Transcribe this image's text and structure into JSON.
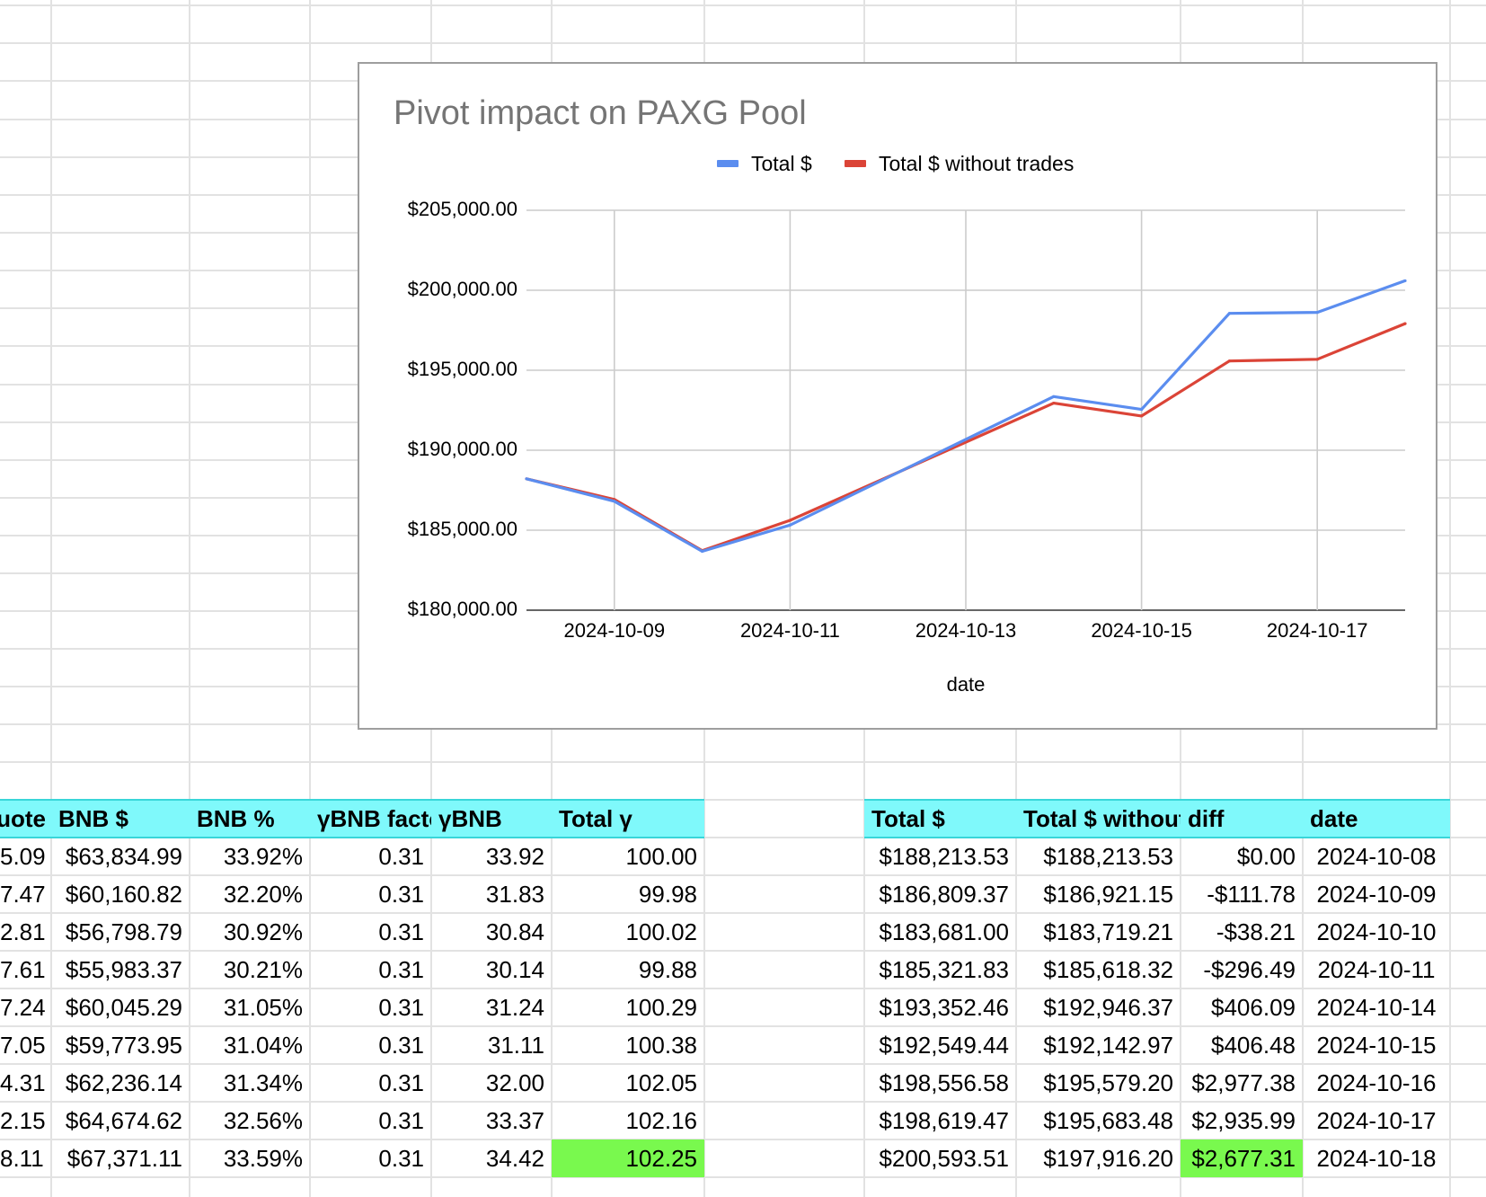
{
  "colors": {
    "header_fill": "#7ff9fb",
    "highlight_fill": "#79f94e",
    "grid_line": "#e2e2e2",
    "series_total": "#5b8def",
    "series_without": "#db4437"
  },
  "chart_data": {
    "type": "line",
    "title": "Pivot impact on PAXG Pool",
    "xlabel": "date",
    "ylabel": "",
    "legend_position": "top",
    "grid": true,
    "ylim": [
      180000,
      205000
    ],
    "y_ticks": [
      "$180,000.00",
      "$185,000.00",
      "$190,000.00",
      "$195,000.00",
      "$200,000.00",
      "$205,000.00"
    ],
    "y_tick_values": [
      180000,
      185000,
      190000,
      195000,
      200000,
      205000
    ],
    "x_ticks": [
      "2024-10-09",
      "2024-10-11",
      "2024-10-13",
      "2024-10-15",
      "2024-10-17"
    ],
    "x": [
      "2024-10-08",
      "2024-10-09",
      "2024-10-10",
      "2024-10-11",
      "2024-10-14",
      "2024-10-15",
      "2024-10-16",
      "2024-10-17",
      "2024-10-18"
    ],
    "xlim": [
      "2024-10-08",
      "2024-10-18"
    ],
    "series": [
      {
        "name": "Total $",
        "color": "#5b8def",
        "values": [
          188213.53,
          186809.37,
          183681.0,
          185321.83,
          193352.46,
          192549.44,
          198556.58,
          198619.47,
          200593.51
        ]
      },
      {
        "name": "Total $ without trades",
        "color": "#db4437",
        "values": [
          188213.53,
          186921.15,
          183719.21,
          185618.32,
          192946.37,
          192142.97,
          195579.2,
          195683.48,
          197916.2
        ]
      }
    ]
  },
  "left_table": {
    "headers": [
      "quote $",
      "BNB $",
      "BNB %",
      "γBNB factor",
      "γBNB",
      "Total γ"
    ],
    "rows": [
      [
        "5.09",
        "$63,834.99",
        "33.92%",
        "0.31",
        "33.92",
        "100.00"
      ],
      [
        "7.47",
        "$60,160.82",
        "32.20%",
        "0.31",
        "31.83",
        "99.98"
      ],
      [
        "2.81",
        "$56,798.79",
        "30.92%",
        "0.31",
        "30.84",
        "100.02"
      ],
      [
        "7.61",
        "$55,983.37",
        "30.21%",
        "0.31",
        "30.14",
        "99.88"
      ],
      [
        "7.24",
        "$60,045.29",
        "31.05%",
        "0.31",
        "31.24",
        "100.29"
      ],
      [
        "7.05",
        "$59,773.95",
        "31.04%",
        "0.31",
        "31.11",
        "100.38"
      ],
      [
        "4.31",
        "$62,236.14",
        "31.34%",
        "0.31",
        "32.00",
        "102.05"
      ],
      [
        "2.15",
        "$64,674.62",
        "32.56%",
        "0.31",
        "33.37",
        "102.16"
      ],
      [
        "8.11",
        "$67,371.11",
        "33.59%",
        "0.31",
        "34.42",
        "102.25"
      ]
    ]
  },
  "right_table": {
    "headers": [
      "Total $",
      "Total $ without trades",
      "diff",
      "date"
    ],
    "rows": [
      [
        "$188,213.53",
        "$188,213.53",
        "$0.00",
        "2024-10-08"
      ],
      [
        "$186,809.37",
        "$186,921.15",
        "-$111.78",
        "2024-10-09"
      ],
      [
        "$183,681.00",
        "$183,719.21",
        "-$38.21",
        "2024-10-10"
      ],
      [
        "$185,321.83",
        "$185,618.32",
        "-$296.49",
        "2024-10-11"
      ],
      [
        "$193,352.46",
        "$192,946.37",
        "$406.09",
        "2024-10-14"
      ],
      [
        "$192,549.44",
        "$192,142.97",
        "$406.48",
        "2024-10-15"
      ],
      [
        "$198,556.58",
        "$195,579.20",
        "$2,977.38",
        "2024-10-16"
      ],
      [
        "$198,619.47",
        "$195,683.48",
        "$2,935.99",
        "2024-10-17"
      ],
      [
        "$200,593.51",
        "$197,916.20",
        "$2,677.31",
        "2024-10-18"
      ]
    ]
  }
}
